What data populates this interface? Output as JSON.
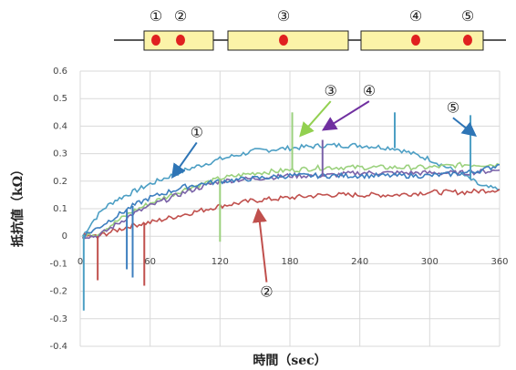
{
  "chart_data": {
    "type": "line",
    "xlabel": "時間（sec）",
    "ylabel": "抵抗値（kΩ）",
    "xlim": [
      0,
      360
    ],
    "ylim": [
      -0.4,
      0.6
    ],
    "xticks": [
      "0",
      "60",
      "120",
      "180",
      "240",
      "300",
      "360"
    ],
    "yticks": [
      "-0.4",
      "-0.3",
      "-0.2",
      "-0.1",
      "0",
      "0.1",
      "0.2",
      "0.3",
      "0.4",
      "0.5",
      "0.6"
    ],
    "grid": true,
    "series": [
      {
        "name": "①",
        "color": "#4d9fc4",
        "x": [
          2,
          10,
          20,
          30,
          45,
          60,
          90,
          120,
          150,
          180,
          210,
          240,
          270,
          300,
          330,
          345,
          360
        ],
        "y": [
          0.0,
          0.05,
          0.1,
          0.13,
          0.16,
          0.19,
          0.24,
          0.28,
          0.31,
          0.32,
          0.33,
          0.33,
          0.32,
          0.28,
          0.22,
          0.18,
          0.17
        ]
      },
      {
        "name": "②",
        "color": "#c0504d",
        "x": [
          2,
          15,
          30,
          45,
          60,
          90,
          120,
          150,
          180,
          210,
          240,
          270,
          300,
          330,
          360
        ],
        "y": [
          0.0,
          0.0,
          0.02,
          0.04,
          0.05,
          0.08,
          0.11,
          0.13,
          0.14,
          0.15,
          0.15,
          0.15,
          0.16,
          0.16,
          0.17
        ]
      },
      {
        "name": "③",
        "color": "#9bd17e",
        "x": [
          2,
          15,
          30,
          45,
          60,
          90,
          120,
          150,
          180,
          210,
          240,
          270,
          300,
          330,
          360
        ],
        "y": [
          0.0,
          0.01,
          0.05,
          0.09,
          0.12,
          0.17,
          0.21,
          0.23,
          0.24,
          0.25,
          0.25,
          0.25,
          0.25,
          0.26,
          0.26
        ]
      },
      {
        "name": "④",
        "color": "#7a62a8",
        "x": [
          2,
          15,
          30,
          45,
          60,
          90,
          120,
          150,
          180,
          210,
          240,
          270,
          300,
          330,
          360
        ],
        "y": [
          0.0,
          0.0,
          0.04,
          0.08,
          0.11,
          0.16,
          0.2,
          0.21,
          0.22,
          0.22,
          0.23,
          0.23,
          0.23,
          0.23,
          0.24
        ]
      },
      {
        "name": "⑤",
        "color": "#3d7fbf",
        "x": [
          2,
          15,
          30,
          45,
          60,
          90,
          120,
          150,
          180,
          210,
          240,
          270,
          300,
          330,
          345,
          360
        ],
        "y": [
          0.0,
          0.03,
          0.07,
          0.11,
          0.14,
          0.18,
          0.2,
          0.21,
          0.22,
          0.22,
          0.22,
          0.22,
          0.22,
          0.23,
          0.24,
          0.26
        ]
      }
    ],
    "spikes": [
      {
        "series": 0,
        "x": 3,
        "y": -0.27
      },
      {
        "series": 0,
        "x": 335,
        "y": 0.44
      },
      {
        "series": 0,
        "x": 270,
        "y": 0.45
      },
      {
        "series": 1,
        "x": 15,
        "y": -0.16
      },
      {
        "series": 1,
        "x": 55,
        "y": -0.18
      },
      {
        "series": 2,
        "x": 182,
        "y": 0.45
      },
      {
        "series": 2,
        "x": 120,
        "y": -0.02
      },
      {
        "series": 3,
        "x": 208,
        "y": 0.35
      },
      {
        "series": 4,
        "x": 40,
        "y": -0.12
      },
      {
        "series": 4,
        "x": 45,
        "y": -0.15
      }
    ],
    "annotations": [
      {
        "label": "①",
        "x_pos": 100,
        "y_pos": 0.38,
        "tip_x": 80,
        "tip_y": 0.22,
        "color": "#2e75b6"
      },
      {
        "label": "②",
        "x_pos": 160,
        "y_pos": -0.2,
        "tip_x": 153,
        "tip_y": 0.09,
        "color": "#c0504d"
      },
      {
        "label": "③",
        "x_pos": 215,
        "y_pos": 0.53,
        "tip_x": 190,
        "tip_y": 0.37,
        "color": "#92d050"
      },
      {
        "label": "④",
        "x_pos": 248,
        "y_pos": 0.53,
        "tip_x": 210,
        "tip_y": 0.39,
        "color": "#7030a0"
      },
      {
        "label": "⑤",
        "x_pos": 320,
        "y_pos": 0.47,
        "tip_x": 338,
        "tip_y": 0.37,
        "color": "#2e75b6"
      }
    ]
  },
  "sensor_diagram": {
    "labels": [
      "①",
      "②",
      "③",
      "④",
      "⑤"
    ]
  }
}
